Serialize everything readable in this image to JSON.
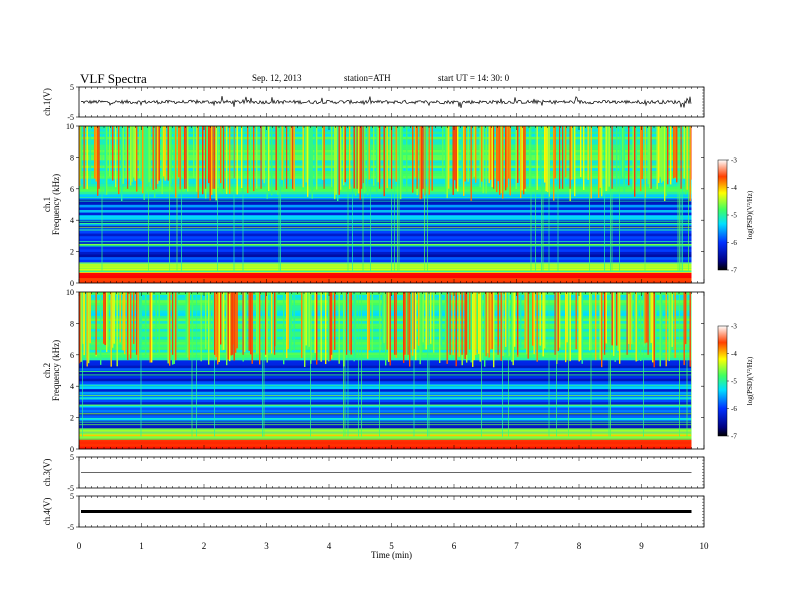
{
  "header": {
    "title": "VLF  Spectra",
    "date": "Sep. 12, 2013",
    "station": "station=ATH",
    "start_ut": "start  UT  =   14: 30: 0"
  },
  "chart_data": [
    {
      "type": "line",
      "panel": "ch1-waveform",
      "ylabel": "ch.1(V)",
      "ylim": [
        -5,
        5
      ],
      "yticks": [
        "5",
        "-5"
      ],
      "baseline": 0.0,
      "description_values": "noisy waveform around ~0 V, spikes between -2 and 2 V"
    },
    {
      "type": "heatmap",
      "panel": "ch1-spectrogram",
      "ylabel": [
        "ch.1",
        "Frequency  (kHz)"
      ],
      "ylim": [
        0,
        10
      ],
      "yticks": [
        "0",
        "2",
        "4",
        "6",
        "8",
        "10"
      ],
      "colorbar": {
        "label": "log(PSD)(V²/Hz)",
        "ticks": [
          "-3",
          "-4",
          "-5",
          "-6",
          "-7"
        ],
        "range": [
          -7,
          -3
        ]
      }
    },
    {
      "type": "heatmap",
      "panel": "ch2-spectrogram",
      "ylabel": [
        "ch.2",
        "Frequency  (kHz)"
      ],
      "ylim": [
        0,
        10
      ],
      "yticks": [
        "0",
        "2",
        "4",
        "6",
        "8",
        "10"
      ],
      "colorbar": {
        "label": "log(PSD)(V²/Hz)",
        "ticks": [
          "-3",
          "-4",
          "-5",
          "-6",
          "-7"
        ],
        "range": [
          -7,
          -3
        ]
      }
    },
    {
      "type": "line",
      "panel": "ch3-waveform",
      "ylabel": "ch.3(V)",
      "ylim": [
        -5,
        5
      ],
      "yticks": [
        "5",
        "-5"
      ],
      "baseline": 0.0
    },
    {
      "type": "line",
      "panel": "ch4-waveform",
      "ylabel": "ch.4(V)",
      "ylim": [
        -5,
        5
      ],
      "yticks": [
        "5",
        "-5"
      ],
      "baseline": 0.0
    }
  ],
  "xaxis": {
    "label": "Time  (min)",
    "range": [
      0,
      10
    ],
    "ticks": [
      "0",
      "1",
      "2",
      "3",
      "4",
      "5",
      "6",
      "7",
      "8",
      "9",
      "10"
    ],
    "data_end": 9.8
  },
  "colors": {
    "low": "#000080",
    "mid_blue": "#0030ff",
    "cyan": "#00e0ff",
    "green": "#40ff60",
    "yellow": "#ffff00",
    "red": "#ff0000"
  }
}
